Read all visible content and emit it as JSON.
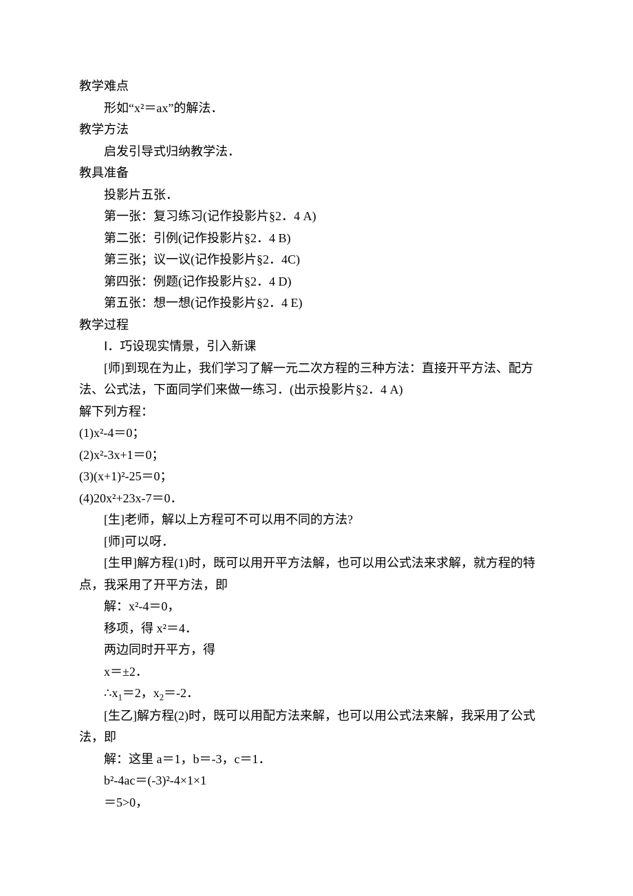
{
  "sec1": {
    "title": "教学难点",
    "line1": "形如“x²＝ax”的解法．"
  },
  "sec2": {
    "title": "教学方法",
    "line1": "启发引导式归纳教学法．"
  },
  "sec3": {
    "title": "教具准备",
    "line1": "投影片五张．",
    "line2": "第一张：复习练习(记作投影片§2．4 A)",
    "line3": "第二张：引例(记作投影片§2．4 B)",
    "line4": "第三张；议一议(记作投影片§2．4C)",
    "line5": "第四张：例题(记作投影片§2．4 D)",
    "line6": "第五张：想一想(记作投影片§2．4 E)"
  },
  "sec4": {
    "title": "教学过程",
    "line1": "Ⅰ．巧设现实情景，引入新课",
    "line2": "[师]到现在为止，我们学习了解一元二次方程的三种方法：直接开平方法、配方法、公式法，下面同学们来做一练习．(出示投影片§2．4 A)"
  },
  "eqs": {
    "title": "解下列方程：",
    "e1a": "(1)x",
    "e1b": "²-4＝0；",
    "e2a": "(2)x",
    "e2b": "²-3x+1＝0；",
    "e3a": "(3)(x+1)",
    "e3b": "²-25＝0；",
    "e4a": "(4)20x",
    "e4b": "²+23x-7＝0．"
  },
  "dlg": {
    "d1": "[生]老师，解以上方程可不可以用不同的方法?",
    "d2": "[师]可以呀．",
    "d3": "[生甲]解方程(1)时，既可以用开平方法解，也可以用公式法来求解，就方程的特点，我采用了开平方法，即",
    "s1": "解：x²-4＝0，",
    "s2": "移项，得 x²＝4．",
    "s3": "两边同时开平方，得",
    "s4": "x＝±2．",
    "s5a": "∴x",
    "s5b": "＝2，x",
    "s5c": "＝-2．",
    "d4": "[生乙]解方程(2)时，既可以用配方法来解，也可以用公式法来解，我采用了公式法，即",
    "t1": "解：这里 a＝1，b＝-3，c＝1．",
    "t2a": "b",
    "t2b": "²-4ac＝(-3)",
    "t2c": "²-4×1×1",
    "t3": "＝5>0，"
  },
  "subs": {
    "one": "1",
    "two": "2"
  }
}
